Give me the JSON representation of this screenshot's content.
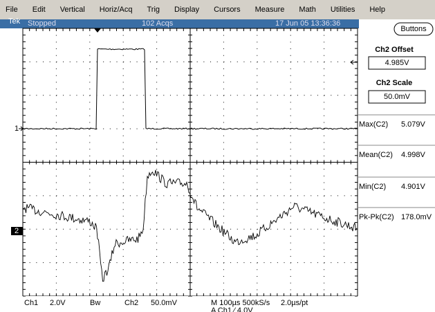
{
  "menu": [
    "File",
    "Edit",
    "Vertical",
    "Horiz/Acq",
    "Trig",
    "Display",
    "Cursors",
    "Measure",
    "Math",
    "Utilities",
    "Help"
  ],
  "status": {
    "brand": "Tek",
    "state": "Stopped",
    "acqs": "102 Acqs",
    "datetime": "17 Jun 05 13:36:36"
  },
  "markers": {
    "ch1": "1",
    "ch2": "2"
  },
  "panel": {
    "button": "Buttons",
    "offset_label": "Ch2 Offset",
    "offset_value": "4.985V",
    "scale_label": "Ch2 Scale",
    "scale_value": "50.0mV"
  },
  "measurements": [
    {
      "name": "Max(C2)",
      "value": "5.079V"
    },
    {
      "name": "Mean(C2)",
      "value": "4.998V"
    },
    {
      "name": "Min(C2)",
      "value": "4.901V"
    },
    {
      "name": "Pk-Pk(C2)",
      "value": "178.0mV"
    }
  ],
  "footer": {
    "ch1": "Ch1",
    "ch1_scale": "2.0V",
    "bw": "Bw",
    "ch2": "Ch2",
    "ch2_scale": "50.0mV",
    "timebase": "M 100µs 500kS/s",
    "resolution": "2.0µs/pt",
    "trigger": "A  Ch1  ⁄  4.0V"
  }
}
